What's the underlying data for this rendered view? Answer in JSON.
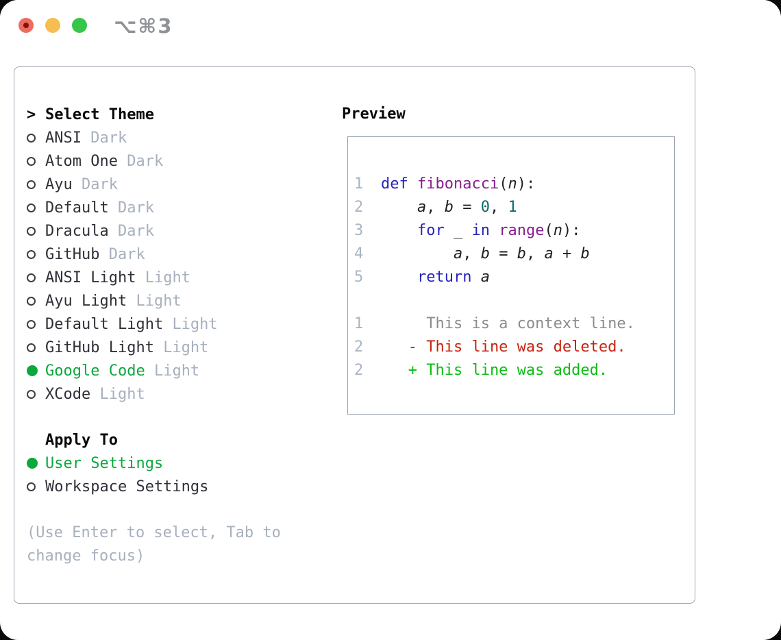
{
  "window": {
    "title_shortcut": "⌥⌘3"
  },
  "colors": {
    "accent_green": "#0ca83c",
    "keyword_blue": "#2525bd",
    "function_purple": "#871f8f",
    "number_teal": "#0e6b6b",
    "deleted_red": "#c8220f",
    "added_green": "#0bbd12",
    "context_gray": "#8c8c8c",
    "border_gray": "#9aa3ae",
    "dim_gray": "#a7b0bd",
    "traffic_red": "#ed6b60",
    "traffic_yellow": "#f6be50",
    "traffic_green": "#37c649"
  },
  "theme_list": {
    "prompt": ">",
    "header": "Select Theme",
    "items": [
      {
        "name": "ANSI",
        "variant": "Dark",
        "selected": false
      },
      {
        "name": "Atom One",
        "variant": "Dark",
        "selected": false
      },
      {
        "name": "Ayu",
        "variant": "Dark",
        "selected": false
      },
      {
        "name": "Default",
        "variant": "Dark",
        "selected": false
      },
      {
        "name": "Dracula",
        "variant": "Dark",
        "selected": false
      },
      {
        "name": "GitHub",
        "variant": "Dark",
        "selected": false
      },
      {
        "name": "ANSI Light",
        "variant": "Light",
        "selected": false
      },
      {
        "name": "Ayu Light",
        "variant": "Light",
        "selected": false
      },
      {
        "name": "Default Light",
        "variant": "Light",
        "selected": false
      },
      {
        "name": "GitHub Light",
        "variant": "Light",
        "selected": false
      },
      {
        "name": "Google Code",
        "variant": "Light",
        "selected": true
      },
      {
        "name": "XCode",
        "variant": "Light",
        "selected": false
      }
    ]
  },
  "apply_to": {
    "header": "Apply To",
    "options": [
      {
        "label": "User Settings",
        "selected": true
      },
      {
        "label": "Workspace Settings",
        "selected": false
      }
    ]
  },
  "help_text": "(Use Enter to select, Tab to change focus)",
  "preview": {
    "header": "Preview",
    "lines": [
      {
        "ln": "1",
        "kind": "code",
        "tokens": [
          {
            "t": "def",
            "c": "kw"
          },
          {
            "t": " ",
            "c": "pln"
          },
          {
            "t": "fibonacci",
            "c": "fn"
          },
          {
            "t": "(",
            "c": "pln"
          },
          {
            "t": "n",
            "c": "var"
          },
          {
            "t": "):",
            "c": "pln"
          }
        ]
      },
      {
        "ln": "2",
        "kind": "code",
        "tokens": [
          {
            "t": "    ",
            "c": "pln"
          },
          {
            "t": "a",
            "c": "var"
          },
          {
            "t": ", ",
            "c": "pln"
          },
          {
            "t": "b",
            "c": "var"
          },
          {
            "t": " = ",
            "c": "pln"
          },
          {
            "t": "0",
            "c": "num"
          },
          {
            "t": ", ",
            "c": "pln"
          },
          {
            "t": "1",
            "c": "num"
          }
        ]
      },
      {
        "ln": "3",
        "kind": "code",
        "tokens": [
          {
            "t": "    ",
            "c": "pln"
          },
          {
            "t": "for",
            "c": "kw"
          },
          {
            "t": " ",
            "c": "pln"
          },
          {
            "t": "_",
            "c": "var"
          },
          {
            "t": " ",
            "c": "pln"
          },
          {
            "t": "in",
            "c": "kw"
          },
          {
            "t": " ",
            "c": "pln"
          },
          {
            "t": "range",
            "c": "fn"
          },
          {
            "t": "(",
            "c": "pln"
          },
          {
            "t": "n",
            "c": "var"
          },
          {
            "t": "):",
            "c": "pln"
          }
        ]
      },
      {
        "ln": "4",
        "kind": "code",
        "tokens": [
          {
            "t": "        ",
            "c": "pln"
          },
          {
            "t": "a",
            "c": "var"
          },
          {
            "t": ", ",
            "c": "pln"
          },
          {
            "t": "b",
            "c": "var"
          },
          {
            "t": " = ",
            "c": "pln"
          },
          {
            "t": "b",
            "c": "var"
          },
          {
            "t": ", ",
            "c": "pln"
          },
          {
            "t": "a",
            "c": "var"
          },
          {
            "t": " + ",
            "c": "pln"
          },
          {
            "t": "b",
            "c": "var"
          }
        ]
      },
      {
        "ln": "5",
        "kind": "code",
        "tokens": [
          {
            "t": "    ",
            "c": "pln"
          },
          {
            "t": "return",
            "c": "kw"
          },
          {
            "t": " ",
            "c": "pln"
          },
          {
            "t": "a",
            "c": "var"
          }
        ]
      },
      {
        "ln": "",
        "kind": "blank",
        "tokens": []
      },
      {
        "ln": "1",
        "kind": "context",
        "tokens": [
          {
            "t": "     This is a context line.",
            "c": "ctx"
          }
        ]
      },
      {
        "ln": "2",
        "kind": "deleted",
        "tokens": [
          {
            "t": "   - This line was deleted.",
            "c": "del"
          }
        ]
      },
      {
        "ln": "2",
        "kind": "added",
        "tokens": [
          {
            "t": "   + This line was added.",
            "c": "add"
          }
        ]
      }
    ]
  }
}
